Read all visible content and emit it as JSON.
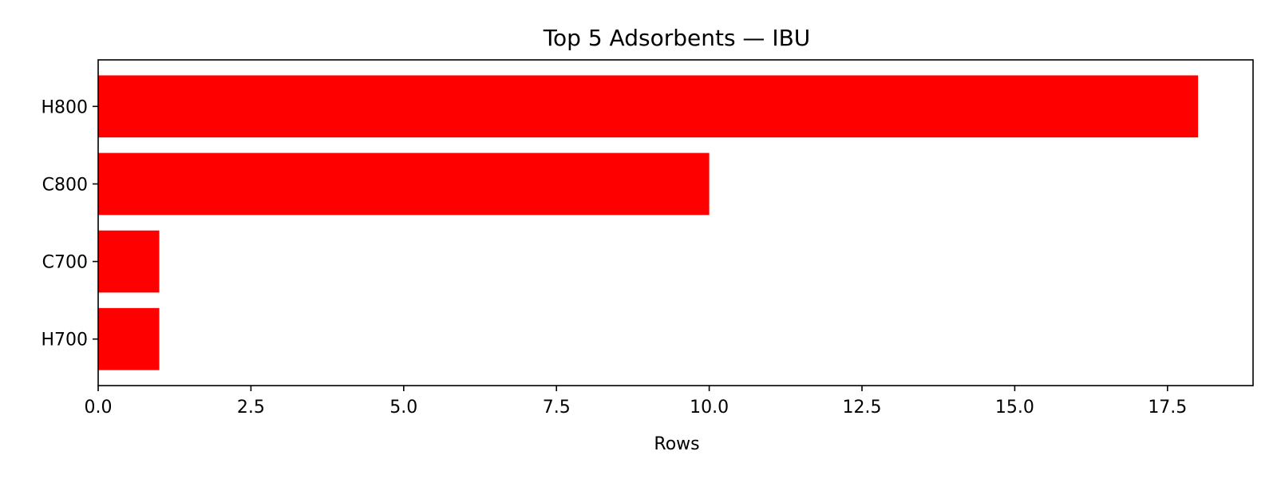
{
  "chart_data": {
    "type": "bar",
    "orientation": "horizontal",
    "title": "Top 5 Adsorbents — IBU",
    "xlabel": "Rows",
    "ylabel": "",
    "categories": [
      "H800",
      "C800",
      "C700",
      "H700"
    ],
    "values": [
      18,
      10,
      1,
      1
    ],
    "xlim": [
      0,
      18.9
    ],
    "xticks": [
      0.0,
      2.5,
      5.0,
      7.5,
      10.0,
      12.5,
      15.0,
      17.5
    ],
    "xtick_labels": [
      "0.0",
      "2.5",
      "5.0",
      "7.5",
      "10.0",
      "12.5",
      "15.0",
      "17.5"
    ],
    "grid": false,
    "bar_color": "#ff0000"
  }
}
